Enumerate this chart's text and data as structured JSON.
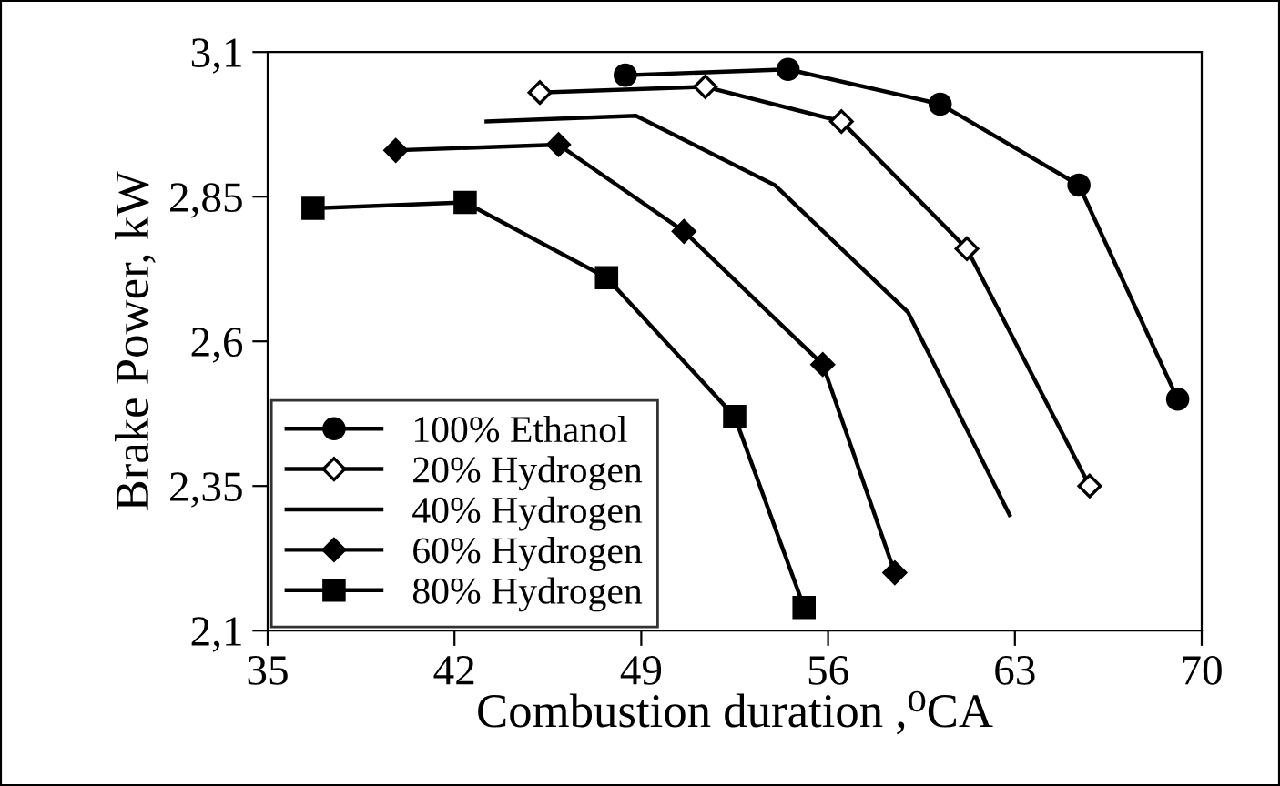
{
  "chart_data": {
    "type": "line",
    "xlabel": "Combustion duration ,⁰CA",
    "ylabel": "Brake Power, kW",
    "xlim": [
      35,
      70
    ],
    "xticks": [
      35,
      42,
      49,
      56,
      63,
      70
    ],
    "ylim": [
      2.1,
      3.1
    ],
    "yticks": [
      {
        "value": 2.1,
        "label": "2,1"
      },
      {
        "value": 2.35,
        "label": "2,35"
      },
      {
        "value": 2.6,
        "label": "2,6"
      },
      {
        "value": 2.85,
        "label": "2,85"
      },
      {
        "value": 3.1,
        "label": "3,1"
      }
    ],
    "grid": false,
    "legend": "bottom left",
    "line_style": "solid",
    "series": [
      {
        "name": "100% Ethanol",
        "color": "#000000",
        "marker": "circle",
        "x": [
          48.4,
          54.5,
          60.2,
          65.4,
          69.1
        ],
        "values": [
          3.06,
          3.07,
          3.01,
          2.87,
          2.5
        ]
      },
      {
        "name": "20% Hydrogen",
        "color": "#000000",
        "marker": "diamond",
        "x": [
          45.2,
          51.4,
          56.5,
          61.2,
          65.8
        ],
        "values": [
          3.03,
          3.04,
          2.98,
          2.76,
          2.35
        ]
      },
      {
        "name": "40% Hydrogen",
        "color": "#000000",
        "marker": "none",
        "x": [
          43.2,
          48.8,
          54.0,
          59.0,
          62.8
        ],
        "values": [
          2.98,
          2.99,
          2.87,
          2.65,
          2.3
        ]
      },
      {
        "name": "60% Hydrogen",
        "color": "#000000",
        "marker": "diamond",
        "x": [
          39.8,
          45.9,
          50.6,
          55.8,
          58.5
        ],
        "values": [
          2.93,
          2.94,
          2.79,
          2.56,
          2.2
        ]
      },
      {
        "name": "80% Hydrogen",
        "color": "#000000",
        "marker": "square",
        "x": [
          36.7,
          42.4,
          47.7,
          52.5,
          55.1
        ],
        "values": [
          2.83,
          2.84,
          2.71,
          2.47,
          2.14
        ]
      }
    ]
  }
}
